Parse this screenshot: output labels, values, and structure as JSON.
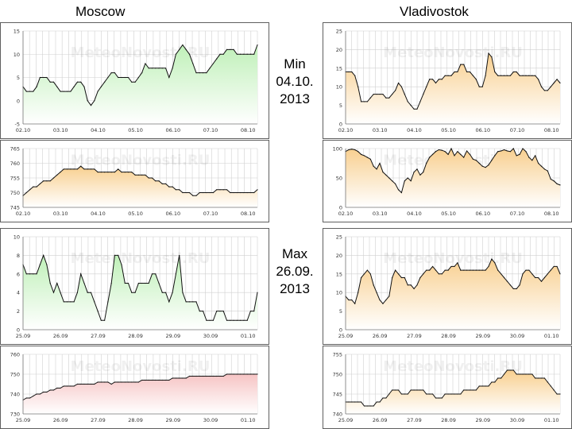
{
  "labels": {
    "left_city": "Moscow",
    "right_city": "Vladivostok",
    "watermark": "MeteoNovosti.RU",
    "top_label": [
      "Min",
      "04.10.",
      "2013"
    ],
    "bottom_label": [
      "Max",
      "26.09.",
      "2013"
    ]
  },
  "colors": {
    "green_fill": "#bff0b8",
    "orange_fill": "#f8cf8f",
    "pink_fill": "#f6c4c4",
    "line": "#111111",
    "grid": "#d0d0d0"
  },
  "chart_data": [
    {
      "id": "moscow-min-temperature",
      "type": "area",
      "fill": "green",
      "x": [
        0,
        1,
        2,
        3,
        4,
        5,
        6,
        7,
        8,
        9,
        10,
        11,
        12,
        13,
        14,
        15,
        16,
        17,
        18,
        19,
        20,
        21,
        22,
        23,
        24,
        25,
        26,
        27,
        28,
        29,
        30,
        31,
        32,
        33,
        34,
        35,
        36,
        37,
        38,
        39,
        40,
        41,
        42,
        43,
        44,
        45,
        46,
        47,
        48,
        49,
        50,
        51,
        52,
        53,
        54,
        55,
        56,
        57,
        58,
        59,
        60,
        61,
        62,
        63,
        64,
        65,
        66,
        67,
        68,
        69
      ],
      "values": [
        3,
        2,
        2,
        2,
        3,
        5,
        5,
        5,
        4,
        4,
        3,
        2,
        2,
        2,
        2,
        3,
        4,
        4,
        3,
        0,
        -1,
        0,
        2,
        3,
        4,
        5,
        6,
        6,
        5,
        5,
        5,
        5,
        4,
        4,
        5,
        6,
        8,
        7,
        7,
        7,
        7,
        7,
        7,
        5,
        7,
        10,
        11,
        12,
        11,
        10,
        8,
        6,
        6,
        6,
        6,
        7,
        8,
        9,
        10,
        10,
        11,
        11,
        11,
        10,
        10,
        10,
        10,
        10,
        10,
        12
      ],
      "ylim": [
        -5,
        15
      ],
      "yticks": [
        "-5",
        "0",
        "5",
        "10",
        "15"
      ],
      "xticks": [
        "02.10",
        "03.10",
        "04.10",
        "05.10",
        "06.10",
        "07.10",
        "08.10"
      ]
    },
    {
      "id": "vladivostok-min-temperature",
      "type": "area",
      "fill": "orange",
      "x": [
        0,
        1,
        2,
        3,
        4,
        5,
        6,
        7,
        8,
        9,
        10,
        11,
        12,
        13,
        14,
        15,
        16,
        17,
        18,
        19,
        20,
        21,
        22,
        23,
        24,
        25,
        26,
        27,
        28,
        29,
        30,
        31,
        32,
        33,
        34,
        35,
        36,
        37,
        38,
        39,
        40,
        41,
        42,
        43,
        44,
        45,
        46,
        47,
        48,
        49,
        50,
        51,
        52,
        53,
        54,
        55,
        56,
        57,
        58,
        59,
        60,
        61,
        62,
        63,
        64,
        65,
        66,
        67,
        68,
        69
      ],
      "values": [
        14,
        14,
        14,
        13,
        10,
        6,
        6,
        6,
        7,
        8,
        8,
        8,
        8,
        7,
        7,
        8,
        9,
        11,
        10,
        8,
        6,
        5,
        4,
        4,
        6,
        8,
        10,
        12,
        12,
        11,
        12,
        12,
        13,
        13,
        13,
        14,
        14,
        16,
        16,
        14,
        14,
        13,
        12,
        10,
        10,
        13,
        19,
        18,
        14,
        13,
        13,
        13,
        13,
        13,
        14,
        14,
        13,
        13,
        13,
        13,
        13,
        13,
        12,
        10,
        9,
        9,
        10,
        11,
        12,
        11
      ],
      "ylim": [
        0,
        25
      ],
      "yticks": [
        "0",
        "5",
        "10",
        "15",
        "20",
        "25"
      ],
      "xticks": [
        "02.10",
        "03.10",
        "04.10",
        "05.10",
        "06.10",
        "07.10",
        "08.10"
      ]
    },
    {
      "id": "moscow-min-pressure",
      "type": "area",
      "fill": "orange",
      "x": [
        0,
        1,
        2,
        3,
        4,
        5,
        6,
        7,
        8,
        9,
        10,
        11,
        12,
        13,
        14,
        15,
        16,
        17,
        18,
        19,
        20,
        21,
        22,
        23,
        24,
        25,
        26,
        27,
        28,
        29,
        30,
        31,
        32,
        33,
        34,
        35,
        36,
        37,
        38,
        39,
        40,
        41,
        42,
        43,
        44,
        45,
        46,
        47,
        48,
        49,
        50,
        51,
        52,
        53,
        54,
        55,
        56,
        57,
        58,
        59,
        60,
        61,
        62,
        63,
        64,
        65,
        66,
        67,
        68,
        69
      ],
      "values": [
        749,
        750,
        751,
        752,
        752,
        753,
        754,
        754,
        754,
        755,
        756,
        757,
        758,
        758,
        758,
        758,
        758,
        759,
        758,
        758,
        758,
        758,
        757,
        757,
        757,
        757,
        757,
        757,
        758,
        757,
        757,
        757,
        757,
        756,
        756,
        756,
        756,
        755,
        755,
        754,
        754,
        753,
        753,
        752,
        752,
        751,
        751,
        750,
        750,
        750,
        749,
        749,
        750,
        750,
        750,
        750,
        750,
        751,
        751,
        751,
        751,
        750,
        750,
        750,
        750,
        750,
        750,
        750,
        750,
        751
      ],
      "ylim": [
        745,
        765
      ],
      "yticks": [
        "745",
        "750",
        "755",
        "760",
        "765"
      ],
      "xticks": [
        "02.10",
        "03.10",
        "04.10",
        "05.10",
        "06.10",
        "07.10",
        "08.10"
      ]
    },
    {
      "id": "vladivostok-min-humidity",
      "type": "area",
      "fill": "orange",
      "x": [
        0,
        1,
        2,
        3,
        4,
        5,
        6,
        7,
        8,
        9,
        10,
        11,
        12,
        13,
        14,
        15,
        16,
        17,
        18,
        19,
        20,
        21,
        22,
        23,
        24,
        25,
        26,
        27,
        28,
        29,
        30,
        31,
        32,
        33,
        34,
        35,
        36,
        37,
        38,
        39,
        40,
        41,
        42,
        43,
        44,
        45,
        46,
        47,
        48,
        49,
        50,
        51,
        52,
        53,
        54,
        55,
        56,
        57,
        58,
        59,
        60,
        61,
        62,
        63,
        64,
        65,
        66,
        67,
        68,
        69
      ],
      "values": [
        95,
        98,
        99,
        98,
        95,
        90,
        88,
        85,
        82,
        70,
        65,
        75,
        60,
        55,
        50,
        45,
        40,
        30,
        25,
        45,
        50,
        45,
        60,
        65,
        55,
        60,
        75,
        85,
        90,
        95,
        98,
        97,
        95,
        90,
        100,
        88,
        95,
        90,
        85,
        96,
        90,
        82,
        80,
        75,
        70,
        68,
        72,
        80,
        88,
        95,
        96,
        98,
        96,
        95,
        100,
        88,
        90,
        100,
        95,
        85,
        80,
        88,
        75,
        70,
        65,
        62,
        48,
        45,
        40,
        38
      ],
      "ylim": [
        0,
        100
      ],
      "yticks": [
        "0",
        "50",
        "100"
      ],
      "xticks": [
        "02.10",
        "03.10",
        "04.10",
        "05.10",
        "06.10",
        "07.10",
        "08.10"
      ]
    },
    {
      "id": "moscow-max-temperature",
      "type": "area",
      "fill": "green",
      "x": [
        0,
        1,
        2,
        3,
        4,
        5,
        6,
        7,
        8,
        9,
        10,
        11,
        12,
        13,
        14,
        15,
        16,
        17,
        18,
        19,
        20,
        21,
        22,
        23,
        24,
        25,
        26,
        27,
        28,
        29,
        30,
        31,
        32,
        33,
        34,
        35,
        36,
        37,
        38,
        39,
        40,
        41,
        42,
        43,
        44,
        45,
        46,
        47,
        48,
        49,
        50,
        51,
        52,
        53,
        54,
        55,
        56,
        57,
        58,
        59,
        60,
        61,
        62,
        63,
        64,
        65,
        66,
        67,
        68,
        69
      ],
      "values": [
        7,
        6,
        6,
        6,
        6,
        7,
        8,
        7,
        5,
        4,
        5,
        4,
        3,
        3,
        3,
        3,
        4,
        6,
        5,
        4,
        4,
        3,
        2,
        1,
        1,
        3,
        5,
        8,
        8,
        7,
        5,
        5,
        4,
        4,
        5,
        5,
        5,
        5,
        6,
        6,
        5,
        4,
        4,
        3,
        4,
        6,
        8,
        4,
        3,
        3,
        3,
        3,
        2,
        2,
        1,
        1,
        1,
        2,
        2,
        2,
        1,
        1,
        1,
        1,
        1,
        1,
        1,
        2,
        2,
        4
      ],
      "ylim": [
        0,
        10
      ],
      "yticks": [
        "0",
        "2",
        "4",
        "6",
        "8",
        "10"
      ],
      "xticks": [
        "25.09",
        "26.09",
        "27.09",
        "28.09",
        "29.09",
        "30.09",
        "01.10"
      ]
    },
    {
      "id": "vladivostok-max-temperature",
      "type": "area",
      "fill": "orange",
      "x": [
        0,
        1,
        2,
        3,
        4,
        5,
        6,
        7,
        8,
        9,
        10,
        11,
        12,
        13,
        14,
        15,
        16,
        17,
        18,
        19,
        20,
        21,
        22,
        23,
        24,
        25,
        26,
        27,
        28,
        29,
        30,
        31,
        32,
        33,
        34,
        35,
        36,
        37,
        38,
        39,
        40,
        41,
        42,
        43,
        44,
        45,
        46,
        47,
        48,
        49,
        50,
        51,
        52,
        53,
        54,
        55,
        56,
        57,
        58,
        59,
        60,
        61,
        62,
        63,
        64,
        65,
        66,
        67,
        68,
        69
      ],
      "values": [
        9,
        8,
        8,
        7,
        10,
        14,
        15,
        16,
        15,
        12,
        10,
        8,
        7,
        8,
        9,
        14,
        16,
        15,
        14,
        14,
        12,
        12,
        11,
        12,
        14,
        15,
        16,
        16,
        17,
        16,
        15,
        15,
        16,
        16,
        17,
        17,
        18,
        16,
        16,
        16,
        16,
        16,
        16,
        16,
        16,
        16,
        17,
        19,
        18,
        16,
        15,
        14,
        13,
        12,
        11,
        11,
        12,
        15,
        16,
        16,
        15,
        14,
        14,
        13,
        14,
        15,
        16,
        17,
        17,
        15
      ],
      "ylim": [
        0,
        25
      ],
      "yticks": [
        "0",
        "5",
        "10",
        "15",
        "20",
        "25"
      ],
      "xticks": [
        "25.09",
        "26.09",
        "27.09",
        "28.09",
        "29.09",
        "30.09",
        "01.10"
      ]
    },
    {
      "id": "moscow-max-pressure",
      "type": "area",
      "fill": "pink",
      "x": [
        0,
        1,
        2,
        3,
        4,
        5,
        6,
        7,
        8,
        9,
        10,
        11,
        12,
        13,
        14,
        15,
        16,
        17,
        18,
        19,
        20,
        21,
        22,
        23,
        24,
        25,
        26,
        27,
        28,
        29,
        30,
        31,
        32,
        33,
        34,
        35,
        36,
        37,
        38,
        39,
        40,
        41,
        42,
        43,
        44,
        45,
        46,
        47,
        48,
        49,
        50,
        51,
        52,
        53,
        54,
        55,
        56,
        57,
        58,
        59,
        60,
        61,
        62,
        63,
        64,
        65,
        66,
        67,
        68,
        69
      ],
      "values": [
        737,
        738,
        738,
        739,
        740,
        740,
        741,
        741,
        742,
        742,
        743,
        743,
        744,
        744,
        744,
        744,
        745,
        745,
        745,
        745,
        745,
        745,
        746,
        746,
        746,
        746,
        745,
        746,
        746,
        746,
        746,
        746,
        746,
        746,
        746,
        747,
        747,
        747,
        747,
        747,
        747,
        747,
        747,
        747,
        748,
        748,
        748,
        748,
        748,
        749,
        749,
        749,
        749,
        749,
        749,
        749,
        749,
        749,
        749,
        749,
        750,
        750,
        750,
        750,
        750,
        750,
        750,
        750,
        750,
        750
      ],
      "ylim": [
        730,
        760
      ],
      "yticks": [
        "730",
        "740",
        "750",
        "760"
      ],
      "xticks": [
        "25.09",
        "26.09",
        "27.09",
        "28.09",
        "29.09",
        "30.09",
        "01.10"
      ]
    },
    {
      "id": "vladivostok-max-pressure",
      "type": "area",
      "fill": "orange",
      "x": [
        0,
        1,
        2,
        3,
        4,
        5,
        6,
        7,
        8,
        9,
        10,
        11,
        12,
        13,
        14,
        15,
        16,
        17,
        18,
        19,
        20,
        21,
        22,
        23,
        24,
        25,
        26,
        27,
        28,
        29,
        30,
        31,
        32,
        33,
        34,
        35,
        36,
        37,
        38,
        39,
        40,
        41,
        42,
        43,
        44,
        45,
        46,
        47,
        48,
        49,
        50,
        51,
        52,
        53,
        54,
        55,
        56,
        57,
        58,
        59,
        60,
        61,
        62,
        63,
        64,
        65,
        66,
        67,
        68,
        69
      ],
      "values": [
        743,
        743,
        743,
        743,
        743,
        743,
        742,
        742,
        742,
        742,
        743,
        743,
        744,
        744,
        745,
        746,
        746,
        746,
        745,
        745,
        745,
        746,
        746,
        746,
        746,
        746,
        745,
        745,
        745,
        744,
        744,
        744,
        745,
        745,
        745,
        745,
        745,
        745,
        746,
        746,
        746,
        746,
        746,
        747,
        747,
        747,
        747,
        748,
        748,
        749,
        749,
        750,
        751,
        751,
        751,
        750,
        750,
        750,
        750,
        750,
        750,
        749,
        749,
        749,
        749,
        748,
        747,
        746,
        745,
        745
      ],
      "ylim": [
        740,
        755
      ],
      "yticks": [
        "740",
        "745",
        "750",
        "755"
      ],
      "xticks": [
        "25.09",
        "26.09",
        "27.09",
        "28.09",
        "29.09",
        "30.09",
        "01.10"
      ]
    }
  ]
}
